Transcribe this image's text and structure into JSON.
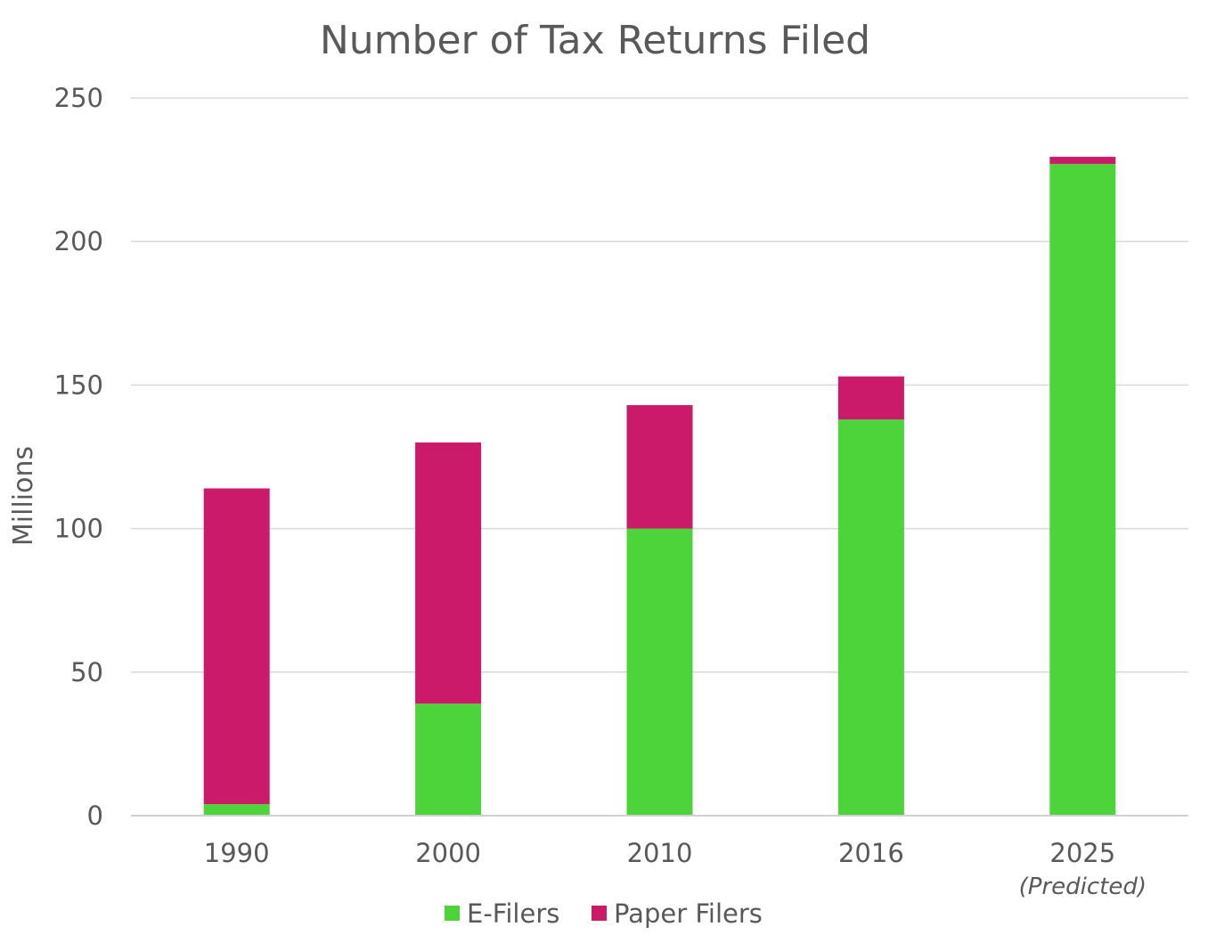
{
  "chart_data": {
    "type": "bar",
    "stacked": true,
    "title": "Number of Tax Returns Filed",
    "ylabel": "Millions",
    "xlabel": "",
    "ylim": [
      0,
      250
    ],
    "yticks": [
      0,
      50,
      100,
      150,
      200,
      250
    ],
    "grid": true,
    "legend_position": "bottom",
    "categories": [
      "1990",
      "2000",
      "2010",
      "2016",
      "2025"
    ],
    "category_notes": [
      "",
      "",
      "",
      "",
      "(Predicted)"
    ],
    "series": [
      {
        "name": "E-Filers",
        "color": "#4cd43a",
        "values": [
          4,
          39,
          100,
          138,
          227
        ]
      },
      {
        "name": "Paper Filers",
        "color": "#cc1a6a",
        "values": [
          110,
          91,
          43,
          15,
          2.5
        ]
      }
    ]
  }
}
